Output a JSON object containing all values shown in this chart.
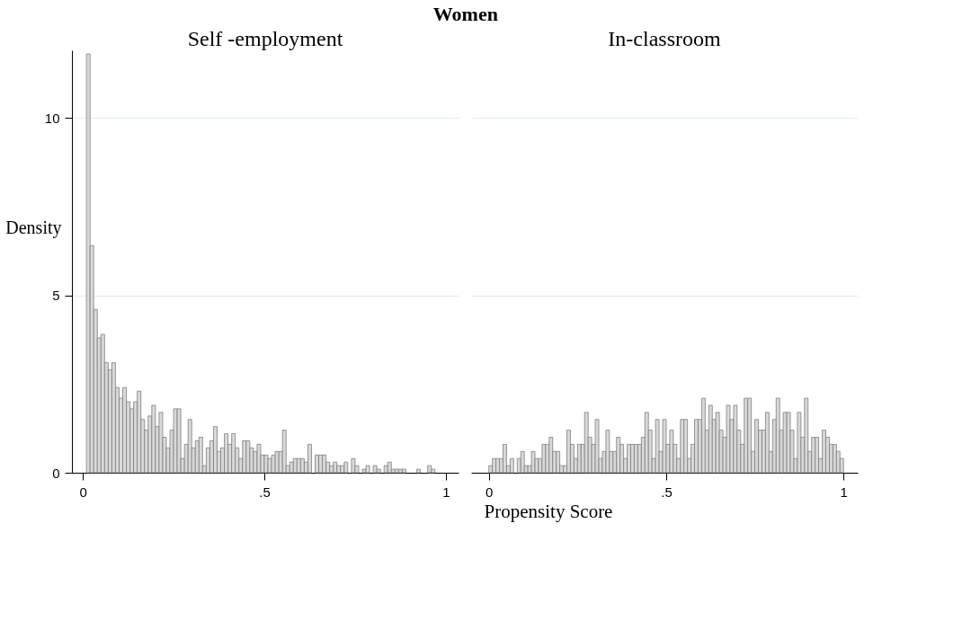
{
  "chart_data": [
    {
      "type": "histogram",
      "title": "Self -employment",
      "annotations": [
        "Women"
      ],
      "xlabel": "Propensity Score",
      "ylabel": "Density",
      "color": "#d9d9d9",
      "bins": [
        0.01,
        0.02,
        0.03,
        0.04,
        0.05,
        0.06,
        0.07,
        0.08,
        0.09,
        0.1,
        0.11,
        0.12,
        0.13,
        0.14,
        0.15,
        0.16,
        0.17,
        0.18,
        0.19,
        0.2,
        0.21,
        0.22,
        0.23,
        0.24,
        0.25,
        0.26,
        0.27,
        0.28,
        0.29,
        0.3,
        0.31,
        0.32,
        0.33,
        0.34,
        0.35,
        0.36,
        0.37,
        0.38,
        0.39,
        0.4,
        0.41,
        0.42,
        0.43,
        0.44,
        0.45,
        0.46,
        0.47,
        0.48,
        0.49,
        0.5,
        0.51,
        0.52,
        0.53,
        0.54,
        0.55,
        0.56,
        0.57,
        0.58,
        0.59,
        0.6,
        0.61,
        0.62,
        0.63,
        0.64,
        0.65,
        0.66,
        0.67,
        0.68,
        0.69,
        0.7,
        0.71,
        0.72,
        0.73,
        0.74,
        0.75,
        0.76,
        0.77,
        0.78,
        0.79,
        0.8,
        0.81,
        0.82,
        0.83,
        0.84,
        0.85,
        0.86,
        0.87,
        0.88,
        0.89,
        0.9,
        0.91,
        0.92,
        0.93,
        0.94,
        0.95,
        0.96,
        0.97
      ],
      "values": [
        11.8,
        6.4,
        4.6,
        3.8,
        3.9,
        3.1,
        2.9,
        3.1,
        2.4,
        2.1,
        2.4,
        2.0,
        1.8,
        2.0,
        2.3,
        1.5,
        1.2,
        1.6,
        1.9,
        1.3,
        1.7,
        1.0,
        0.7,
        1.2,
        1.8,
        1.8,
        0.4,
        0.8,
        1.5,
        0.7,
        0.9,
        1.0,
        0.2,
        0.7,
        0.9,
        1.3,
        0.6,
        0.7,
        1.1,
        0.8,
        1.1,
        0.7,
        0.4,
        0.9,
        0.9,
        0.7,
        0.6,
        0.8,
        0.5,
        0.5,
        0.4,
        0.5,
        0.6,
        0.6,
        1.2,
        0.2,
        0.3,
        0.4,
        0.4,
        0.4,
        0.3,
        0.8,
        0,
        0.5,
        0.5,
        0.5,
        0.3,
        0.2,
        0.3,
        0.2,
        0.2,
        0.3,
        0,
        0.4,
        0.2,
        0,
        0.1,
        0.2,
        0,
        0.2,
        0.1,
        0,
        0.2,
        0.3,
        0.1,
        0.1,
        0.1,
        0.1,
        0,
        0,
        0,
        0.1,
        0,
        0,
        0.2,
        0.1
      ],
      "xlim": [
        -0.03,
        1.035
      ],
      "ylim": [
        0,
        11.9
      ],
      "xticks": [
        0,
        {
          "value": 0.5,
          "label": ".5"
        },
        1
      ],
      "yticks": [
        0,
        5,
        10
      ],
      "grid": "y"
    },
    {
      "type": "histogram",
      "title": "In-classroom",
      "color": "#d9d9d9",
      "bins": [
        0.0,
        0.01,
        0.02,
        0.03,
        0.04,
        0.05,
        0.06,
        0.07,
        0.08,
        0.09,
        0.1,
        0.11,
        0.12,
        0.13,
        0.14,
        0.15,
        0.16,
        0.17,
        0.18,
        0.19,
        0.2,
        0.21,
        0.22,
        0.23,
        0.24,
        0.25,
        0.26,
        0.27,
        0.28,
        0.29,
        0.3,
        0.31,
        0.32,
        0.33,
        0.34,
        0.35,
        0.36,
        0.37,
        0.38,
        0.39,
        0.4,
        0.41,
        0.42,
        0.43,
        0.44,
        0.45,
        0.46,
        0.47,
        0.48,
        0.49,
        0.5,
        0.51,
        0.52,
        0.53,
        0.54,
        0.55,
        0.56,
        0.57,
        0.58,
        0.59,
        0.6,
        0.61,
        0.62,
        0.63,
        0.64,
        0.65,
        0.66,
        0.67,
        0.68,
        0.69,
        0.7,
        0.71,
        0.72,
        0.73,
        0.74,
        0.75,
        0.76,
        0.77,
        0.78,
        0.79,
        0.8,
        0.81,
        0.82,
        0.83,
        0.84,
        0.85,
        0.86,
        0.87,
        0.88,
        0.89,
        0.9,
        0.91,
        0.92,
        0.93,
        0.94,
        0.95,
        0.96,
        0.97,
        0.98,
        0.99,
        1.0
      ],
      "values": [
        0.2,
        0.4,
        0.4,
        0.4,
        0.8,
        0.2,
        0.4,
        0,
        0.4,
        0.6,
        0.2,
        0.2,
        0.6,
        0.4,
        0.4,
        0.8,
        0.8,
        1.0,
        0.6,
        0.6,
        0.2,
        0.2,
        1.2,
        0.8,
        0.4,
        0.8,
        0.8,
        1.7,
        1.0,
        0.8,
        1.5,
        0.4,
        0.6,
        1.2,
        0.6,
        0.6,
        1.0,
        0.8,
        0.4,
        0.8,
        0.8,
        0.8,
        0.8,
        1.0,
        1.7,
        1.2,
        0.4,
        1.5,
        0.6,
        1.5,
        0.8,
        1.2,
        0.8,
        0.4,
        1.5,
        1.5,
        0.4,
        0.8,
        1.5,
        1.5,
        2.1,
        1.2,
        1.9,
        1.5,
        1.7,
        1.2,
        1.0,
        1.9,
        1.5,
        1.9,
        1.2,
        0.8,
        2.1,
        2.1,
        0.6,
        1.5,
        1.2,
        1.2,
        1.7,
        0.6,
        1.5,
        2.1,
        1.2,
        1.7,
        1.7,
        1.2,
        0.4,
        1.7,
        1.0,
        2.1,
        0.6,
        1.0,
        1.0,
        0.4,
        1.2,
        1.0,
        0.8,
        0.8,
        0.6,
        0.4
      ],
      "xlim": [
        -0.05,
        1.04
      ],
      "xticks": [
        0,
        {
          "value": 0.5,
          "label": ".5"
        },
        1
      ],
      "yticks": [
        0,
        5,
        10
      ],
      "grid": "y",
      "tick_labels": "x"
    }
  ]
}
